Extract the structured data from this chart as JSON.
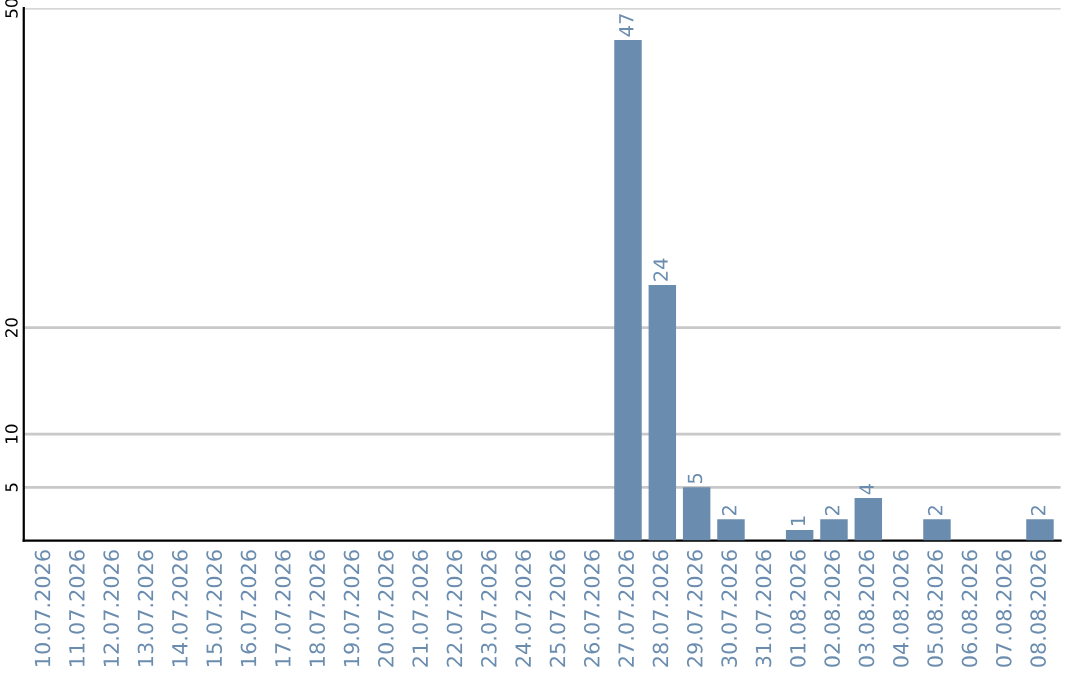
{
  "chart_data": {
    "type": "bar",
    "categories": [
      "10.07.2026",
      "11.07.2026",
      "12.07.2026",
      "13.07.2026",
      "14.07.2026",
      "15.07.2026",
      "16.07.2026",
      "17.07.2026",
      "18.07.2026",
      "19.07.2026",
      "20.07.2026",
      "21.07.2026",
      "22.07.2026",
      "23.07.2026",
      "24.07.2026",
      "25.07.2026",
      "26.07.2026",
      "27.07.2026",
      "28.07.2026",
      "29.07.2026",
      "30.07.2026",
      "31.07.2026",
      "01.08.2026",
      "02.08.2026",
      "03.08.2026",
      "04.08.2026",
      "05.08.2026",
      "06.08.2026",
      "07.08.2026",
      "08.08.2026"
    ],
    "values": [
      0,
      0,
      0,
      0,
      0,
      0,
      0,
      0,
      0,
      0,
      0,
      0,
      0,
      0,
      0,
      0,
      0,
      47,
      24,
      5,
      2,
      0,
      1,
      2,
      4,
      0,
      2,
      0,
      0,
      2
    ],
    "value_labels": [
      null,
      null,
      null,
      null,
      null,
      null,
      null,
      null,
      null,
      null,
      null,
      null,
      null,
      null,
      null,
      null,
      null,
      "47",
      "24",
      "5",
      "2",
      null,
      "1",
      "2",
      "4",
      null,
      "2",
      null,
      null,
      "2"
    ],
    "color": "#6a8caf",
    "ylim": [
      0,
      50
    ],
    "yticks": [
      5,
      10,
      20,
      50
    ],
    "grid": "y"
  }
}
